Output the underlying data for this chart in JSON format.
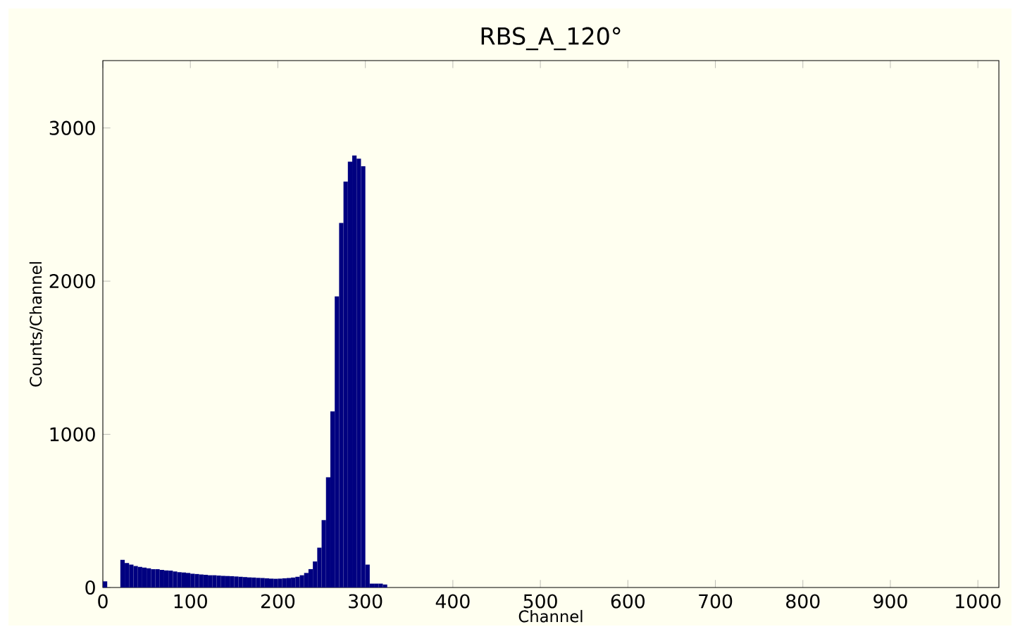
{
  "chart_data": {
    "type": "histogram",
    "title": "RBS_A_120°",
    "xlabel": "Channel",
    "ylabel": "Counts/Channel",
    "color": "#000080",
    "bins": [
      0,
      5,
      10,
      15,
      20,
      25,
      30,
      35,
      40,
      45,
      50,
      55,
      60,
      65,
      70,
      75,
      80,
      85,
      90,
      95,
      100,
      105,
      110,
      115,
      120,
      125,
      130,
      135,
      140,
      145,
      150,
      155,
      160,
      165,
      170,
      175,
      180,
      185,
      190,
      195,
      200,
      205,
      210,
      215,
      220,
      225,
      230,
      235,
      240,
      245,
      250,
      255,
      260,
      265,
      270,
      275,
      280,
      285,
      290,
      295,
      300,
      305,
      310,
      315,
      320,
      325
    ],
    "values": [
      40,
      0,
      0,
      0,
      180,
      160,
      150,
      140,
      135,
      130,
      125,
      120,
      120,
      115,
      112,
      110,
      105,
      100,
      98,
      95,
      90,
      88,
      85,
      83,
      80,
      80,
      78,
      76,
      75,
      74,
      72,
      70,
      68,
      66,
      65,
      63,
      62,
      60,
      58,
      57,
      58,
      60,
      62,
      65,
      70,
      80,
      95,
      120,
      170,
      260,
      440,
      720,
      1150,
      1900,
      2380,
      2650,
      2780,
      2820,
      2800,
      2750,
      150,
      25,
      25,
      25,
      20
    ],
    "xlim": [
      0,
      1024
    ],
    "ylim": [
      0,
      3440
    ],
    "xticks": [
      0,
      100,
      200,
      300,
      400,
      500,
      600,
      700,
      800,
      900,
      1000
    ],
    "yticks": [
      0,
      1000,
      2000,
      3000
    ]
  }
}
